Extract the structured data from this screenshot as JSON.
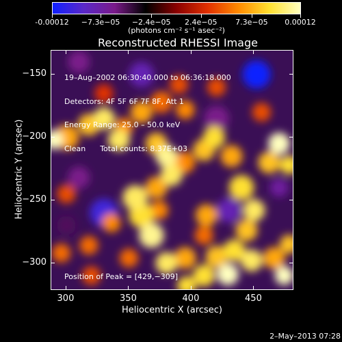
{
  "colorbar": {
    "tick_labels": [
      "-0.00012",
      "−7.3e−05",
      "−2.4e−05",
      "2.4e−05",
      "7.3e−05",
      "0.00012"
    ],
    "tick_values": [
      -0.00012,
      -7.3e-05,
      -2.4e-05,
      2.4e-05,
      7.3e-05,
      0.00012
    ],
    "units": "(photons cm⁻² s⁻¹ asec⁻²)",
    "colors": [
      "#1020ff",
      "#5a28c8",
      "#7a1a8a",
      "#000000",
      "#8a0000",
      "#e03000",
      "#ff8a00",
      "#ffe030",
      "#ffffc0"
    ]
  },
  "title": "Reconstructed RHESSI Image",
  "info": {
    "line1": "19–Aug–2002 06:30:40.000 to 06:36:18.000",
    "line2": "Detectors: 4F 5F 6F 7F 8F, Att 1",
    "line3": "Energy Range: 25.0 – 50.0 keV",
    "line4": "Clean      Total counts: 8.37E+03"
  },
  "peak_text": "Position of Peak = [429,−309]",
  "datestamp": "2–May–2013 07:28",
  "chart_data": {
    "type": "heatmap",
    "title": "Reconstructed RHESSI Image",
    "xlabel": "Heliocentric X (arcsec)",
    "ylabel": "Heliocentric Y (arcsec)",
    "xlim": [
      288,
      482
    ],
    "ylim": [
      -322,
      -131
    ],
    "xticks": [
      300,
      350,
      400,
      450
    ],
    "yticks": [
      -300,
      -250,
      -200,
      -150
    ],
    "xtick_labels": [
      "300",
      "350",
      "400",
      "450"
    ],
    "ytick_labels": [
      "−300",
      "−250",
      "−200",
      "−150"
    ],
    "value_range": [
      -0.00012,
      0.00012
    ],
    "peak": [
      429,
      -309
    ],
    "blobs": [
      {
        "x": 290,
        "y": -202,
        "v": 0.00012,
        "r": 6
      },
      {
        "x": 300,
        "y": -200,
        "v": 7e-05,
        "r": 8
      },
      {
        "x": 318,
        "y": -190,
        "v": 8e-05,
        "r": 7
      },
      {
        "x": 330,
        "y": -185,
        "v": 0.0001,
        "r": 7
      },
      {
        "x": 346,
        "y": -192,
        "v": 6e-05,
        "r": 6
      },
      {
        "x": 342,
        "y": -202,
        "v": 0.0001,
        "r": 7
      },
      {
        "x": 360,
        "y": -180,
        "v": 7e-05,
        "r": 7
      },
      {
        "x": 376,
        "y": -172,
        "v": 5e-05,
        "r": 7
      },
      {
        "x": 390,
        "y": -158,
        "v": 4e-05,
        "r": 6
      },
      {
        "x": 395,
        "y": -178,
        "v": 6e-05,
        "r": 6
      },
      {
        "x": 372,
        "y": -205,
        "v": 8e-05,
        "r": 7
      },
      {
        "x": 380,
        "y": -215,
        "v": 0.00011,
        "r": 7
      },
      {
        "x": 384,
        "y": -230,
        "v": 0.0001,
        "r": 7
      },
      {
        "x": 394,
        "y": -220,
        "v": 6e-05,
        "r": 7
      },
      {
        "x": 410,
        "y": -210,
        "v": 8e-05,
        "r": 7
      },
      {
        "x": 418,
        "y": -200,
        "v": 9e-05,
        "r": 7
      },
      {
        "x": 432,
        "y": -215,
        "v": 7e-05,
        "r": 7
      },
      {
        "x": 470,
        "y": -205,
        "v": 0.00012,
        "r": 7
      },
      {
        "x": 462,
        "y": -220,
        "v": 8e-05,
        "r": 7
      },
      {
        "x": 478,
        "y": -222,
        "v": 9e-05,
        "r": 6
      },
      {
        "x": 440,
        "y": -240,
        "v": 9e-05,
        "r": 8
      },
      {
        "x": 450,
        "y": -258,
        "v": 0.0001,
        "r": 7
      },
      {
        "x": 444,
        "y": -274,
        "v": 8e-05,
        "r": 7
      },
      {
        "x": 434,
        "y": -290,
        "v": 9e-05,
        "r": 7
      },
      {
        "x": 420,
        "y": -295,
        "v": 8e-05,
        "r": 7
      },
      {
        "x": 429,
        "y": -309,
        "v": 0.00012,
        "r": 7
      },
      {
        "x": 448,
        "y": -298,
        "v": 0.0001,
        "r": 7
      },
      {
        "x": 466,
        "y": -296,
        "v": 7e-05,
        "r": 7
      },
      {
        "x": 478,
        "y": -285,
        "v": 8e-05,
        "r": 6
      },
      {
        "x": 474,
        "y": -310,
        "v": 0.00012,
        "r": 6
      },
      {
        "x": 410,
        "y": -310,
        "v": 9e-05,
        "r": 7
      },
      {
        "x": 395,
        "y": -296,
        "v": 7e-05,
        "r": 7
      },
      {
        "x": 380,
        "y": -300,
        "v": 0.0001,
        "r": 7
      },
      {
        "x": 396,
        "y": -318,
        "v": 9e-05,
        "r": 6
      },
      {
        "x": 368,
        "y": -278,
        "v": 0.00011,
        "r": 8
      },
      {
        "x": 360,
        "y": -262,
        "v": 9e-05,
        "r": 8
      },
      {
        "x": 355,
        "y": -248,
        "v": 0.0001,
        "r": 8
      },
      {
        "x": 372,
        "y": -240,
        "v": 7e-05,
        "r": 7
      },
      {
        "x": 374,
        "y": -258,
        "v": 6e-05,
        "r": 6
      },
      {
        "x": 336,
        "y": -268,
        "v": 6e-05,
        "r": 6
      },
      {
        "x": 318,
        "y": -286,
        "v": 5e-05,
        "r": 6
      },
      {
        "x": 320,
        "y": -310,
        "v": 4e-05,
        "r": 6
      },
      {
        "x": 350,
        "y": -296,
        "v": 5e-05,
        "r": 6
      },
      {
        "x": 412,
        "y": -262,
        "v": 7e-05,
        "r": 7
      },
      {
        "x": 410,
        "y": -278,
        "v": 5e-05,
        "r": 6
      },
      {
        "x": 300,
        "y": -245,
        "v": 4e-05,
        "r": 6
      },
      {
        "x": 296,
        "y": -292,
        "v": 5e-05,
        "r": 6
      },
      {
        "x": 456,
        "y": -180,
        "v": 4e-05,
        "r": 6
      },
      {
        "x": 420,
        "y": -160,
        "v": 4e-05,
        "r": 6
      },
      {
        "x": 330,
        "y": -165,
        "v": 3e-05,
        "r": 6
      },
      {
        "x": 452,
        "y": -150,
        "v": -0.00012,
        "r": 9
      },
      {
        "x": 330,
        "y": -260,
        "v": -0.0001,
        "r": 9
      },
      {
        "x": 430,
        "y": -258,
        "v": -8e-05,
        "r": 8
      },
      {
        "x": 310,
        "y": -232,
        "v": -6e-05,
        "r": 7
      },
      {
        "x": 420,
        "y": -185,
        "v": -6e-05,
        "r": 8
      },
      {
        "x": 360,
        "y": -150,
        "v": -8e-05,
        "r": 8
      },
      {
        "x": 470,
        "y": -240,
        "v": -7e-05,
        "r": 6
      },
      {
        "x": 310,
        "y": -140,
        "v": -6e-05,
        "r": 7
      },
      {
        "x": 300,
        "y": -270,
        "v": -5e-05,
        "r": 6
      }
    ]
  }
}
